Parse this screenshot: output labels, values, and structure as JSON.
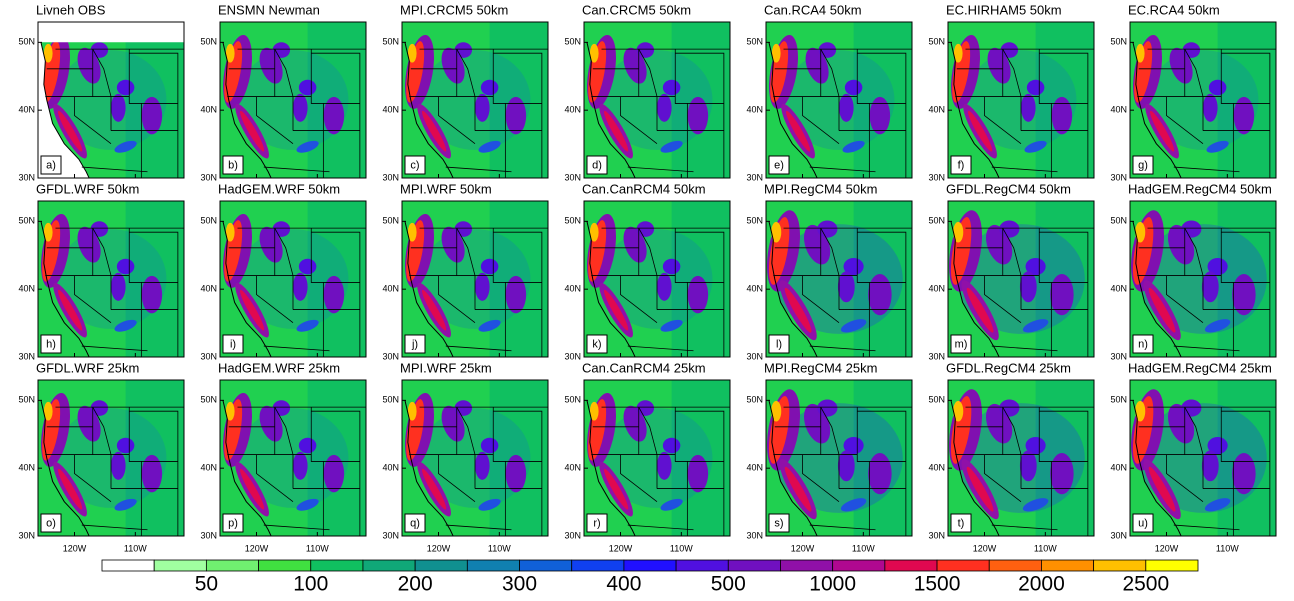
{
  "panels": [
    {
      "title": "Livneh OBS",
      "letter": "a)"
    },
    {
      "title": "ENSMN Newman",
      "letter": "b)"
    },
    {
      "title": "MPI.CRCM5 50km",
      "letter": "c)"
    },
    {
      "title": "Can.CRCM5 50km",
      "letter": "d)"
    },
    {
      "title": "Can.RCA4 50km",
      "letter": "e)"
    },
    {
      "title": "EC.HIRHAM5 50km",
      "letter": "f)"
    },
    {
      "title": "EC.RCA4 50km",
      "letter": "g)"
    },
    {
      "title": "GFDL.WRF 50km",
      "letter": "h)"
    },
    {
      "title": "HadGEM.WRF 50km",
      "letter": "i)"
    },
    {
      "title": "MPI.WRF 50km",
      "letter": "j)"
    },
    {
      "title": "Can.CanRCM4 50km",
      "letter": "k)"
    },
    {
      "title": "MPI.RegCM4 50km",
      "letter": "l)"
    },
    {
      "title": "GFDL.RegCM4 50km",
      "letter": "m)"
    },
    {
      "title": "HadGEM.RegCM4 50km",
      "letter": "n)"
    },
    {
      "title": "GFDL.WRF 25km",
      "letter": "o)"
    },
    {
      "title": "HadGEM.WRF 25km",
      "letter": "p)"
    },
    {
      "title": "MPI.WRF 25km",
      "letter": "q)"
    },
    {
      "title": "Can.CanRCM4 25km",
      "letter": "r)"
    },
    {
      "title": "MPI.RegCM4 25km",
      "letter": "s)"
    },
    {
      "title": "GFDL.RegCM4 25km",
      "letter": "t)"
    },
    {
      "title": "HadGEM.RegCM4 25km",
      "letter": "u)"
    }
  ],
  "map": {
    "xlim": [
      -126,
      -102
    ],
    "ylim": [
      30,
      53
    ],
    "xticks": [
      {
        "value": -120,
        "label": "120W"
      },
      {
        "value": -110,
        "label": "110W"
      }
    ],
    "yticks": [
      {
        "value": 50,
        "label": "50N"
      },
      {
        "value": 40,
        "label": "40N"
      },
      {
        "value": 30,
        "label": "30N"
      }
    ]
  },
  "colorbar": {
    "colors": [
      "#ffffff",
      "#a0ffa0",
      "#70f070",
      "#40e040",
      "#10c060",
      "#10a878",
      "#109090",
      "#1080b0",
      "#1060d8",
      "#1040f0",
      "#2010ff",
      "#5010e0",
      "#7010c0",
      "#9010a8",
      "#b00890",
      "#e00850",
      "#ff3020",
      "#ff6010",
      "#ff9000",
      "#ffc000",
      "#ffff00"
    ],
    "levels": [
      50,
      100,
      200,
      300,
      400,
      500,
      1000,
      1500,
      2000,
      2500
    ]
  }
}
